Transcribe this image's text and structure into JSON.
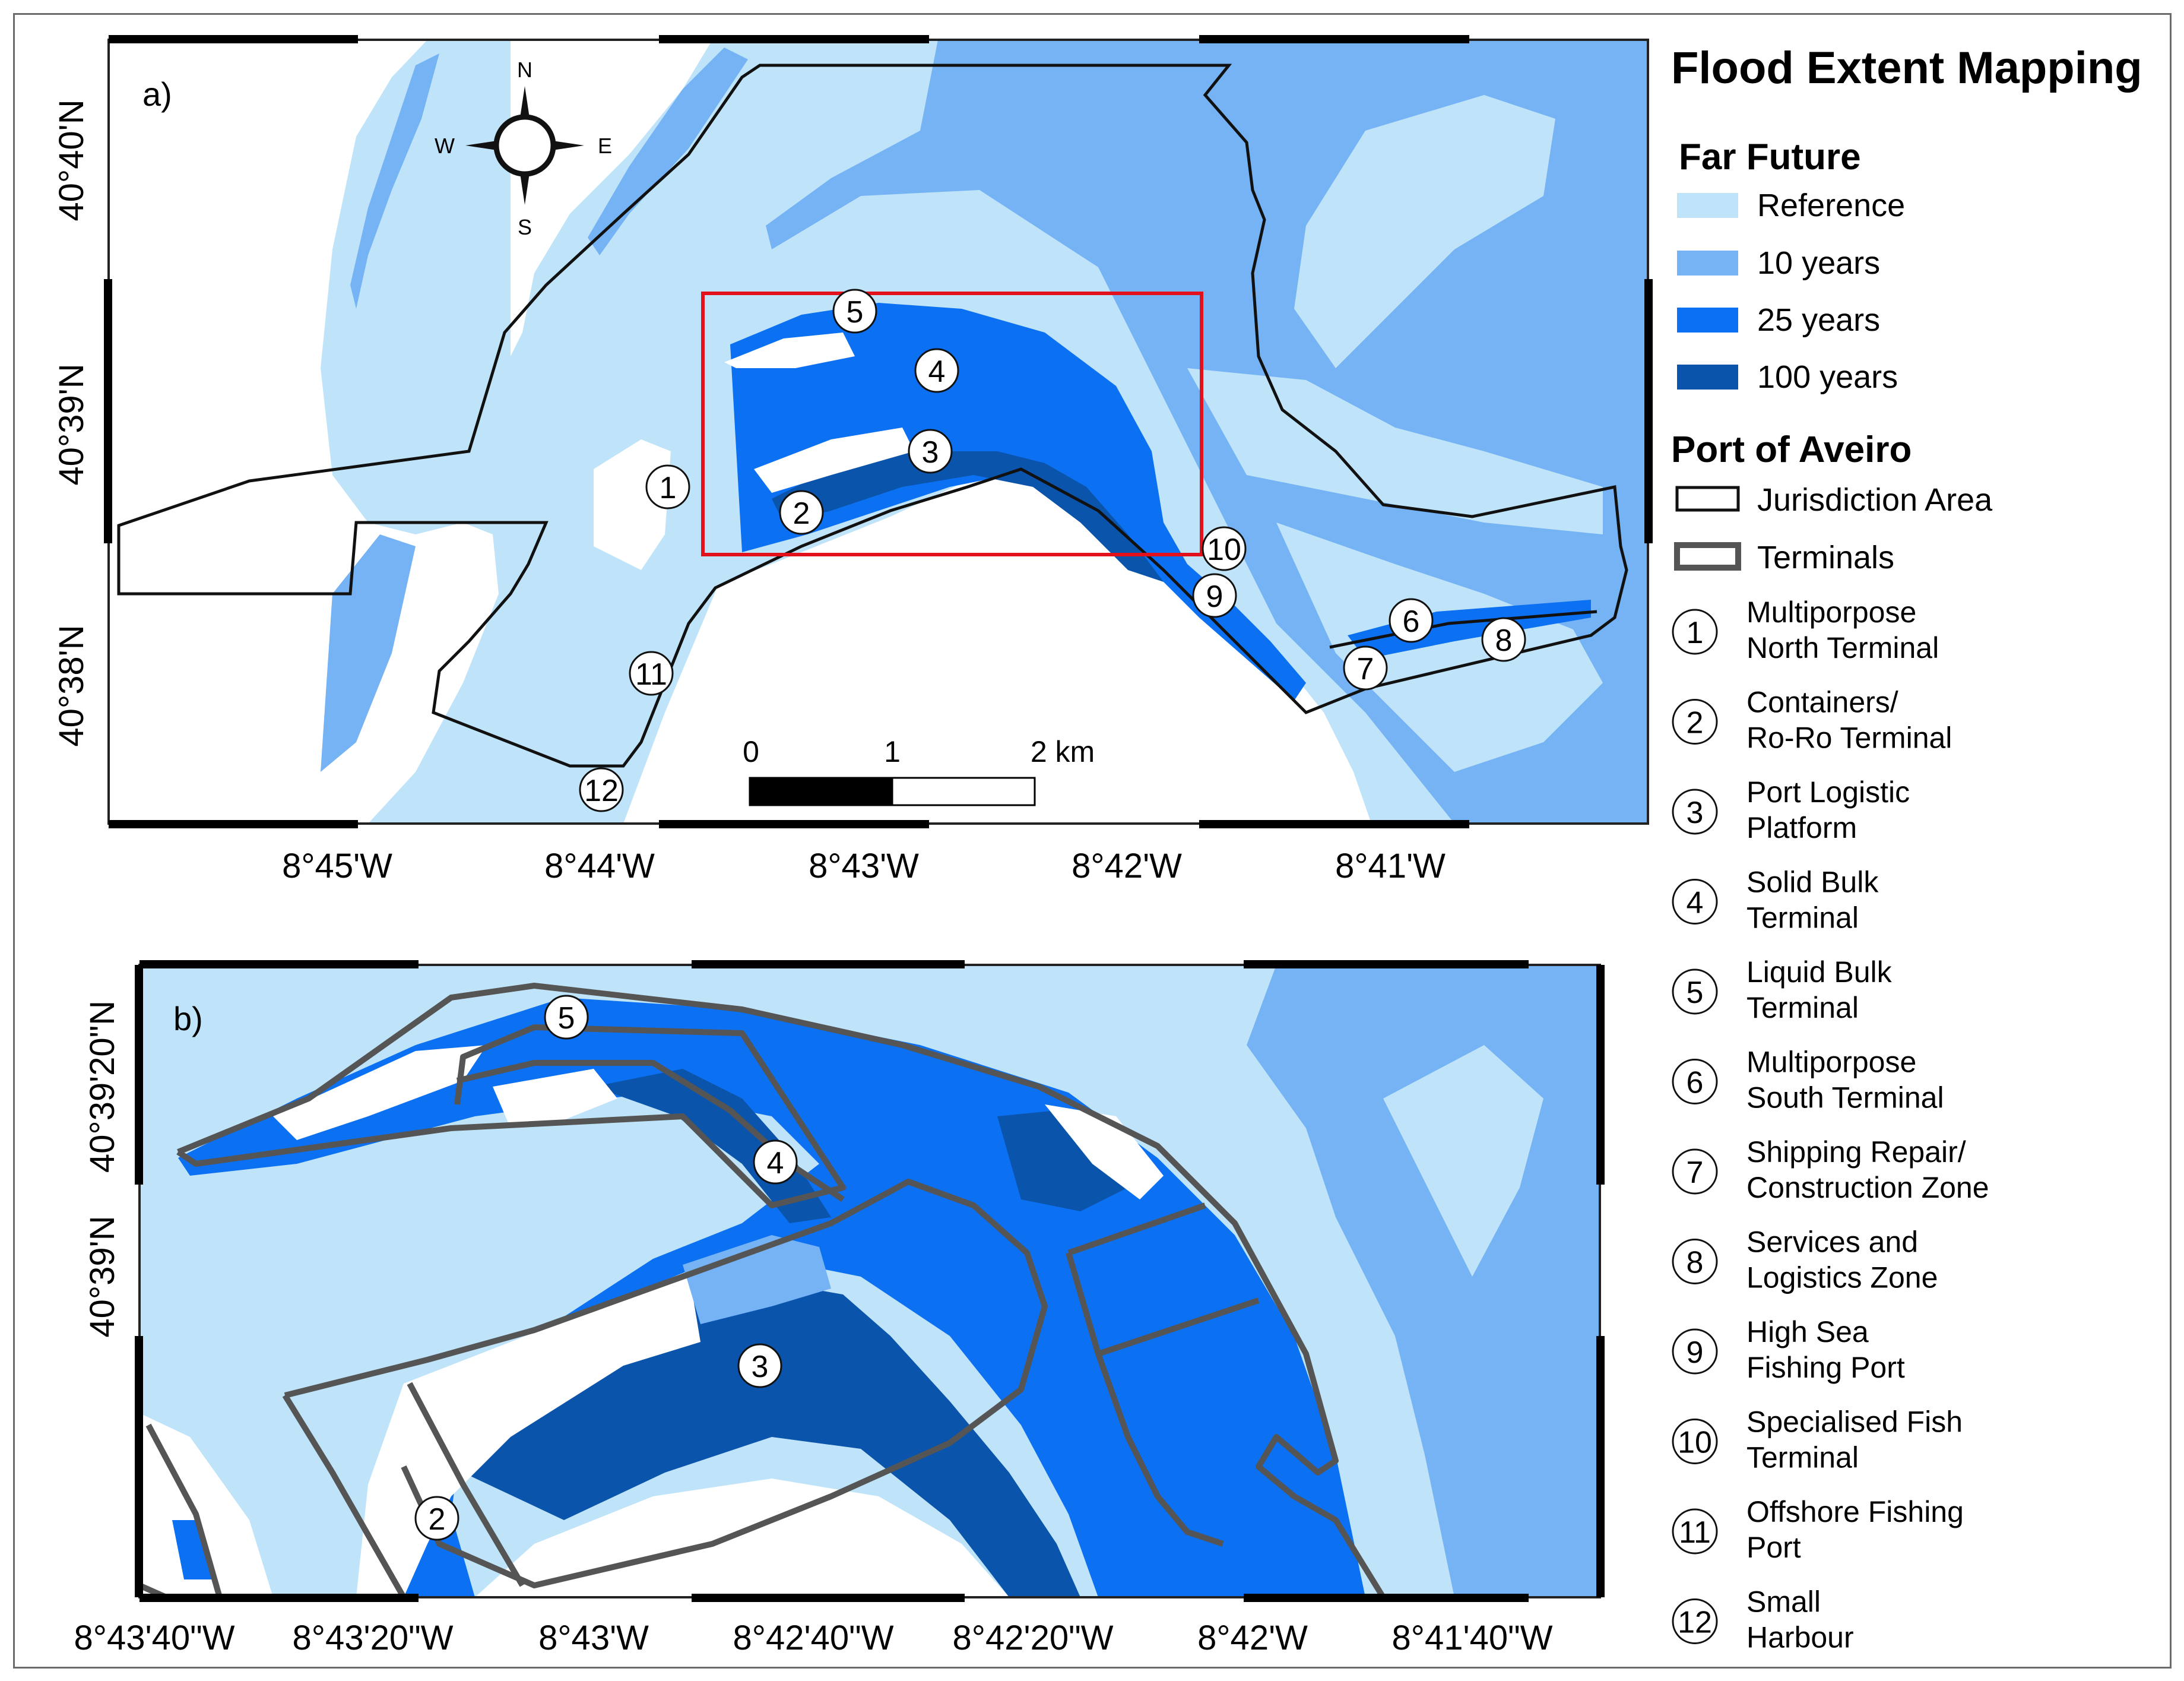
{
  "title": "Flood Extent Mapping",
  "colors": {
    "reference": "#bfe4f9",
    "ten_years": "#75b3f5",
    "twentyfive_years": "#0b70f1",
    "hundred_years": "#0a54ab",
    "land": "#ffffff",
    "zoom_box": "#e3111b",
    "jurisdiction": "#111111",
    "terminals": "#555555"
  },
  "legend": {
    "scenario_title": "Far Future",
    "scenarios": [
      {
        "label": "Reference",
        "color": "#bfe4f9"
      },
      {
        "label": "10 years",
        "color": "#75b3f5"
      },
      {
        "label": "25 years",
        "color": "#0b70f1"
      },
      {
        "label": "100 years",
        "color": "#0a54ab"
      }
    ],
    "port_title": "Port of Aveiro",
    "boundaries": [
      {
        "label": "Jurisdiction Area",
        "style": "jurisdiction"
      },
      {
        "label": "Terminals",
        "style": "terminals"
      }
    ],
    "terminals": [
      {
        "num": "1",
        "line1": "Multiporpose",
        "line2": "North Terminal"
      },
      {
        "num": "2",
        "line1": "Containers/",
        "line2": "Ro-Ro Terminal"
      },
      {
        "num": "3",
        "line1": "Port Logistic",
        "line2": "Platform"
      },
      {
        "num": "4",
        "line1": "Solid Bulk",
        "line2": "Terminal"
      },
      {
        "num": "5",
        "line1": "Liquid Bulk",
        "line2": "Terminal"
      },
      {
        "num": "6",
        "line1": "Multiporpose",
        "line2": "South Terminal"
      },
      {
        "num": "7",
        "line1": "Shipping Repair/",
        "line2": "Construction Zone"
      },
      {
        "num": "8",
        "line1": "Services and",
        "line2": "Logistics Zone"
      },
      {
        "num": "9",
        "line1": "High Sea",
        "line2": "Fishing Port"
      },
      {
        "num": "10",
        "line1": "Specialised Fish",
        "line2": "Terminal"
      },
      {
        "num": "11",
        "line1": "Offshore Fishing",
        "line2": "Port"
      },
      {
        "num": "12",
        "line1": "Small",
        "line2": "Harbour"
      }
    ]
  },
  "panel_a": {
    "tag": "a)",
    "compass": {
      "n": "N",
      "s": "S",
      "e": "E",
      "w": "W"
    },
    "scale": {
      "ticks": [
        "0",
        "1",
        "2 km"
      ]
    },
    "lat_labels": [
      "40°40'N",
      "40°39'N",
      "40°38'N"
    ],
    "lon_labels": [
      "8°45'W",
      "8°44'W",
      "8°43'W",
      "8°42'W",
      "8°41'W"
    ],
    "markers": [
      "1",
      "2",
      "3",
      "4",
      "5",
      "6",
      "7",
      "8",
      "9",
      "10",
      "11",
      "12"
    ]
  },
  "panel_b": {
    "tag": "b)",
    "lat_labels": [
      "40°39'20\"N",
      "40°39'N"
    ],
    "lon_labels": [
      "8°43'40\"W",
      "8°43'20\"W",
      "8°43'W",
      "8°42'40\"W",
      "8°42'20\"W",
      "8°42'W",
      "8°41'40\"W"
    ],
    "markers": [
      "2",
      "3",
      "4",
      "5"
    ]
  }
}
